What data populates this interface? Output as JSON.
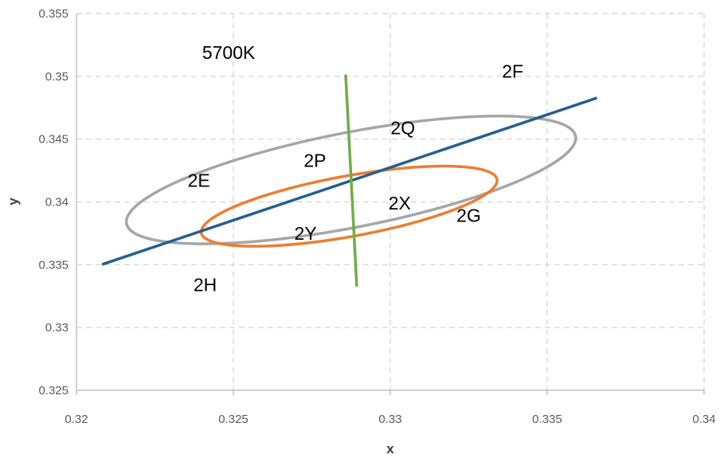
{
  "chart_data": {
    "type": "scatter",
    "title": "",
    "xlabel": "x",
    "ylabel": "y",
    "xlim": [
      0.32,
      0.34
    ],
    "ylim": [
      0.325,
      0.355
    ],
    "xticks": [
      0.32,
      0.325,
      0.33,
      0.335,
      0.34
    ],
    "yticks": [
      0.325,
      0.33,
      0.335,
      0.34,
      0.345,
      0.35,
      0.355
    ],
    "xtick_labels": [
      "0.32",
      "0.325",
      "0.33",
      "0.335",
      "0.34"
    ],
    "ytick_labels": [
      "0.325",
      "0.33",
      "0.335",
      "0.34",
      "0.345",
      "0.35",
      "0.355"
    ],
    "grid": true,
    "shapes": [
      {
        "name": "outer-ellipse",
        "kind": "ellipse",
        "center": [
          0.32875,
          0.34175
        ],
        "semi_axis_a": 0.0081,
        "semi_axis_b": 0.0034,
        "rotation_deg": 31,
        "color": "#a6a6a6"
      },
      {
        "name": "inner-ellipse",
        "kind": "ellipse",
        "center": [
          0.32869,
          0.33966
        ],
        "semi_axis_a": 0.00525,
        "semi_axis_b": 0.0022,
        "rotation_deg": 29,
        "color": "#ed7d31"
      },
      {
        "name": "blackbody-line",
        "kind": "line",
        "x": [
          0.32085,
          0.33655
        ],
        "y": [
          0.33505,
          0.34825
        ],
        "color": "#255e91"
      },
      {
        "name": "cct-line",
        "kind": "line",
        "x": [
          0.32858,
          0.32893
        ],
        "y": [
          0.35005,
          0.33335
        ],
        "color": "#70ad47"
      }
    ],
    "annotations": [
      {
        "text": "5700K",
        "x": 0.32485,
        "y": 0.3514
      },
      {
        "text": "2F",
        "x": 0.3339,
        "y": 0.3499
      },
      {
        "text": "2Q",
        "x": 0.3304,
        "y": 0.3454
      },
      {
        "text": "2P",
        "x": 0.3276,
        "y": 0.3428
      },
      {
        "text": "2E",
        "x": 0.3239,
        "y": 0.3412
      },
      {
        "text": "2X",
        "x": 0.3303,
        "y": 0.3394
      },
      {
        "text": "2G",
        "x": 0.3325,
        "y": 0.3384
      },
      {
        "text": "2Y",
        "x": 0.3273,
        "y": 0.337
      },
      {
        "text": "2H",
        "x": 0.3241,
        "y": 0.3329
      }
    ]
  }
}
